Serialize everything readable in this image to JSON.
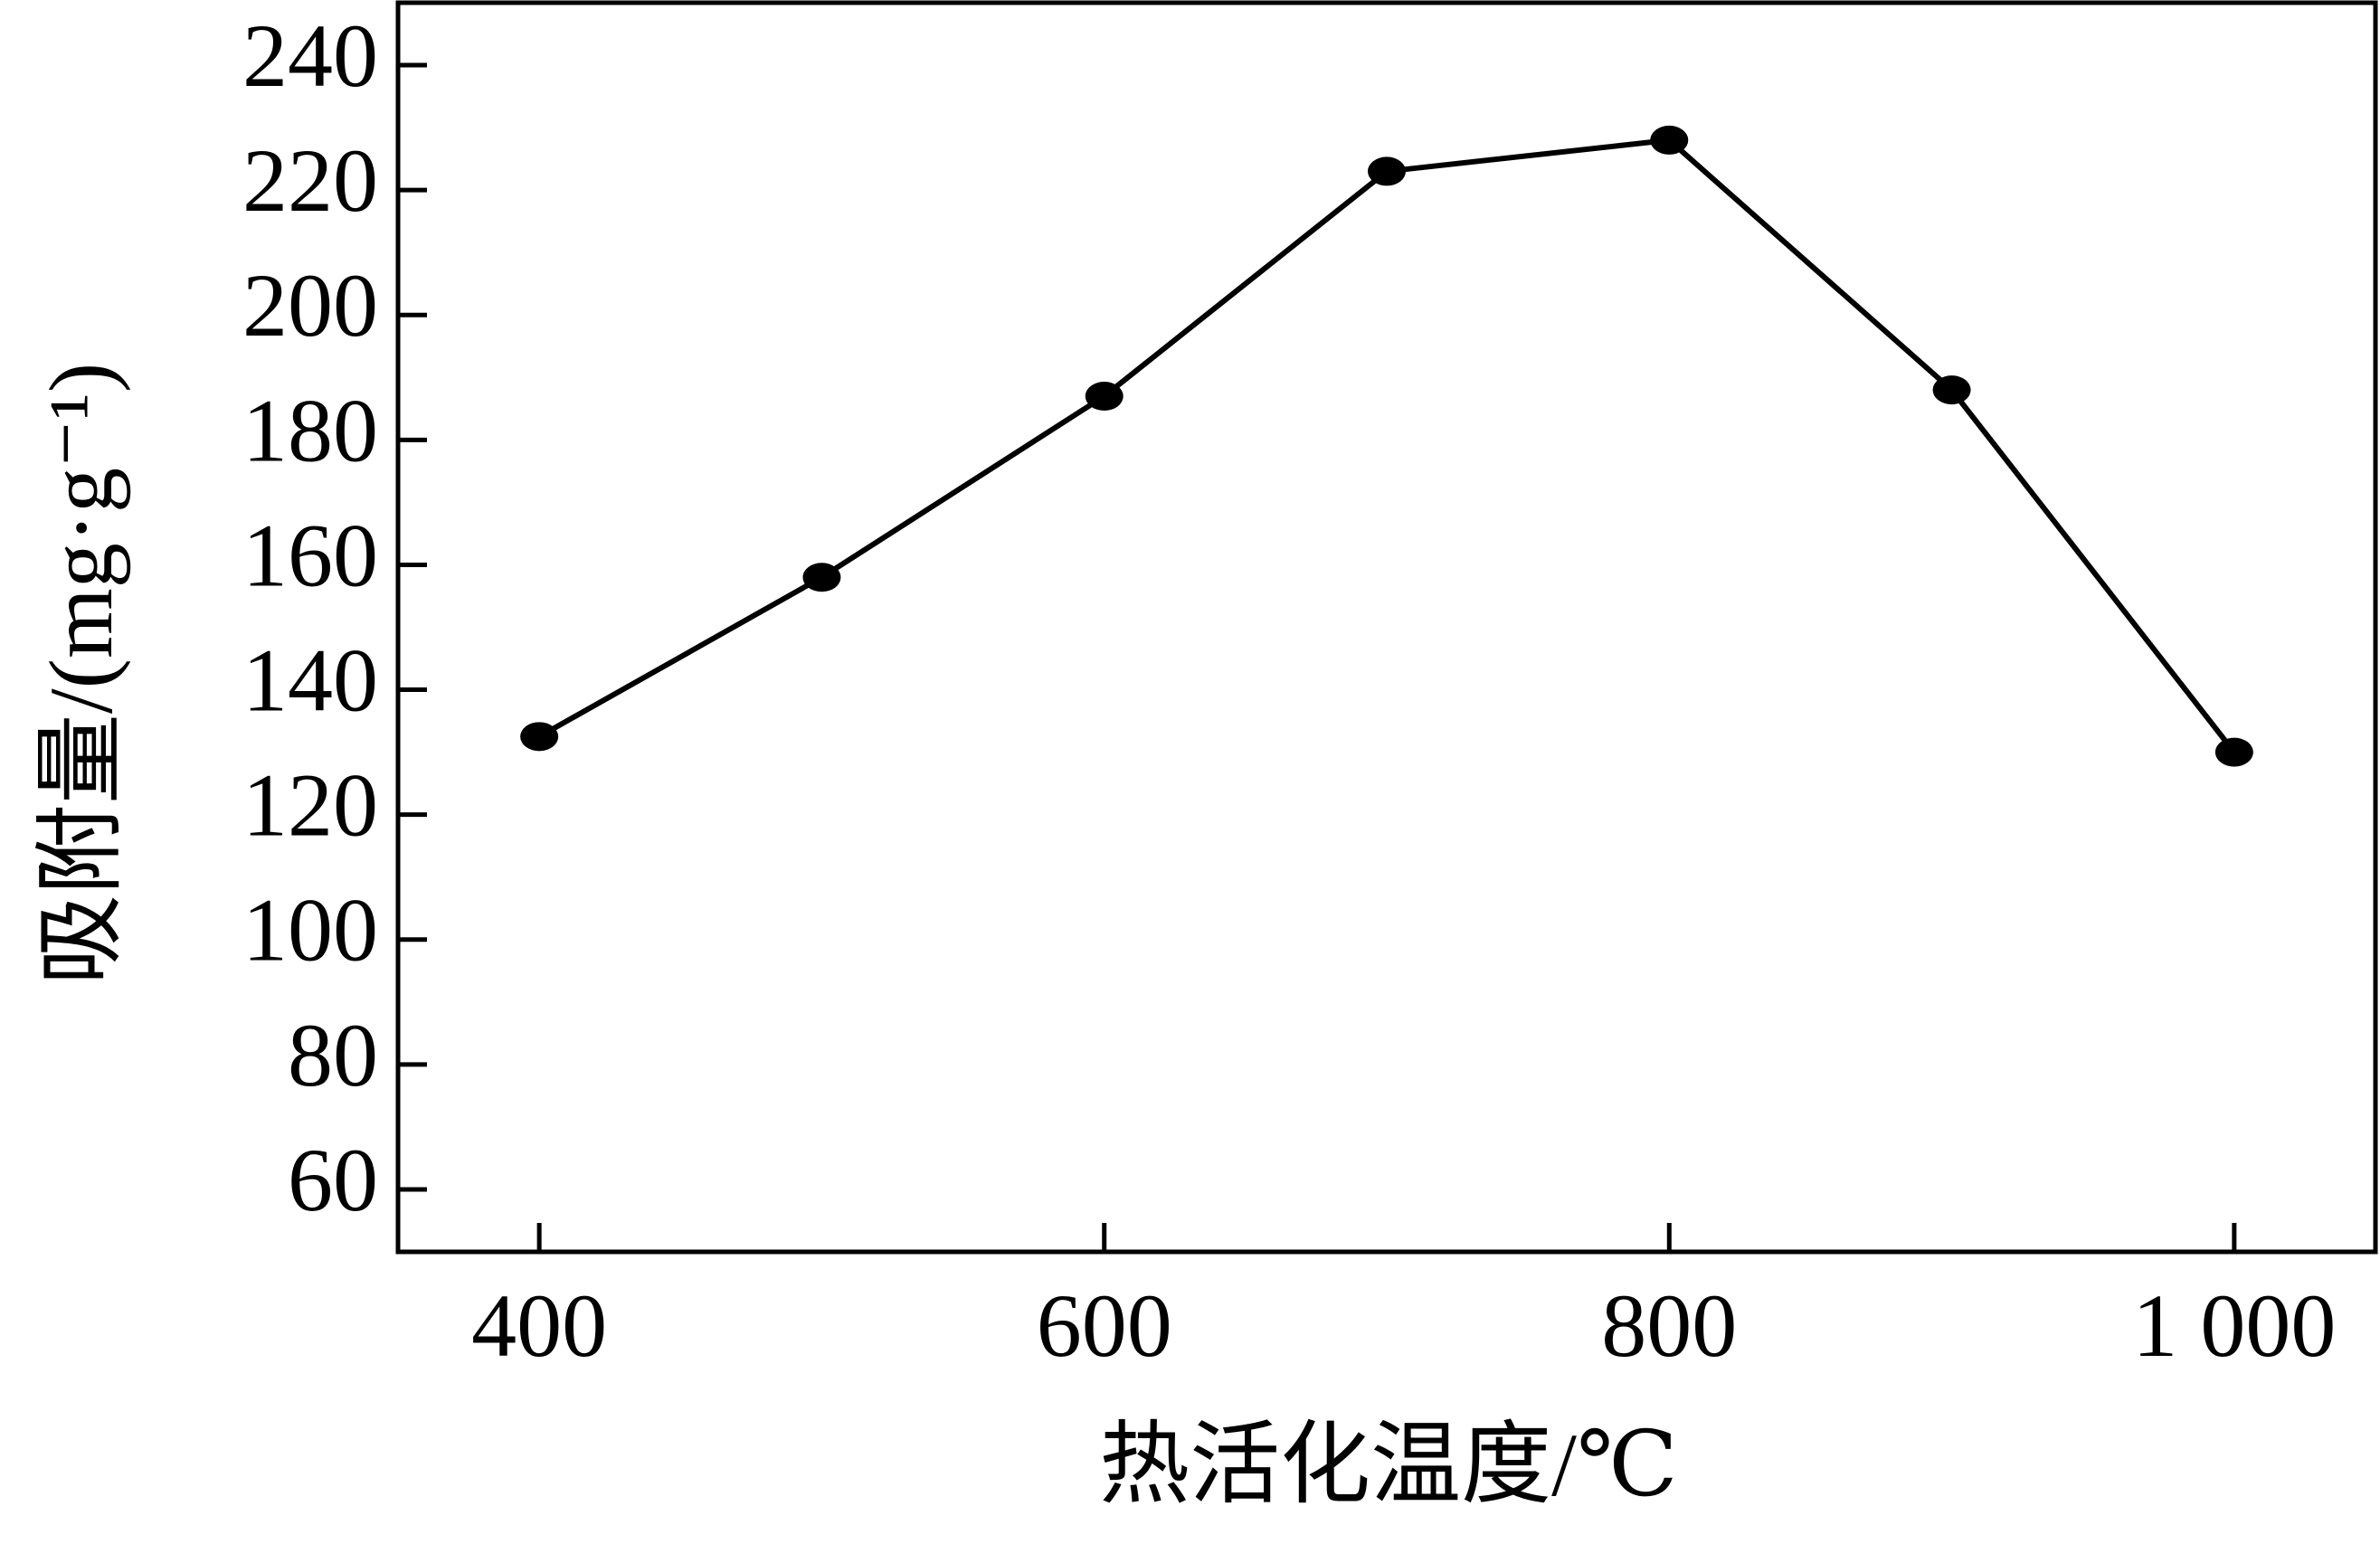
{
  "chart_data": {
    "type": "line",
    "x_label": "热活化温度/℃",
    "y_label": "吸附量/(mg·g⁻¹)",
    "x": [
      400,
      500,
      600,
      700,
      800,
      900,
      1000
    ],
    "series": [
      {
        "color": "#000000",
        "values": [
          132.5,
          158,
          187,
          223,
          228,
          188,
          130
        ]
      }
    ],
    "xlim": [
      350,
      1050
    ],
    "xticks": [
      400,
      600,
      800,
      {
        "value": 1000,
        "label": "1 000"
      }
    ],
    "ylim": [
      50,
      250
    ],
    "yticks": [
      60,
      80,
      100,
      120,
      140,
      160,
      180,
      200,
      220,
      240
    ]
  }
}
